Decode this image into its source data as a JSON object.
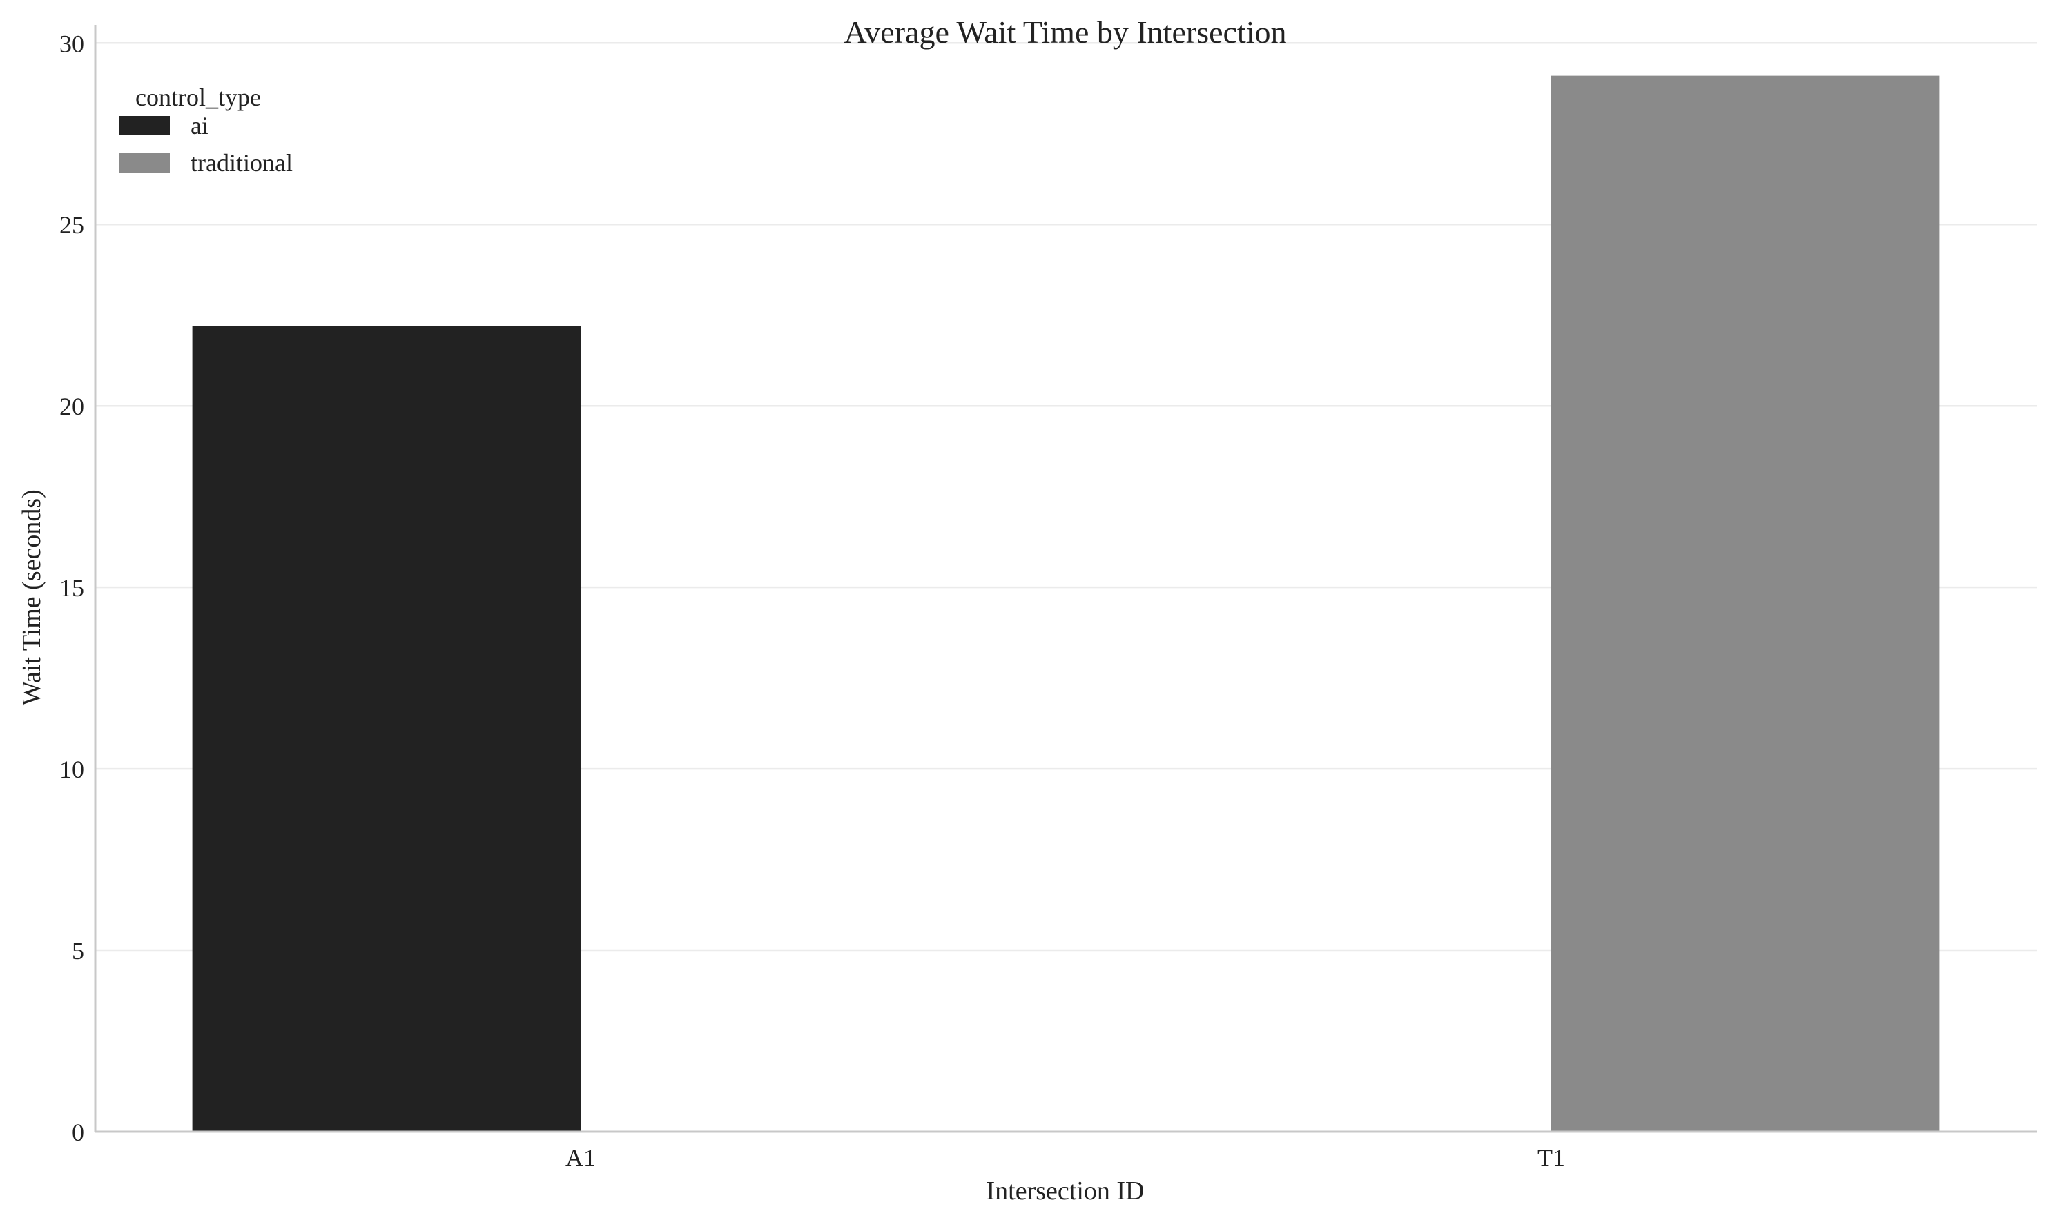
{
  "chart_data": {
    "type": "bar",
    "title": "Average Wait Time by Intersection",
    "xlabel": "Intersection ID",
    "ylabel": "Wait Time (seconds)",
    "categories": [
      "A1",
      "T1"
    ],
    "series": [
      {
        "name": "ai",
        "color": "#222222",
        "values": [
          22.2,
          null
        ]
      },
      {
        "name": "traditional",
        "color": "#8a8a8a",
        "values": [
          null,
          29.1
        ]
      }
    ],
    "ylim": [
      0,
      30.5
    ],
    "yticks": [
      0,
      5,
      10,
      15,
      20,
      25,
      30
    ],
    "grid": true,
    "legend": {
      "title": "control_type",
      "position": "top-left"
    }
  }
}
